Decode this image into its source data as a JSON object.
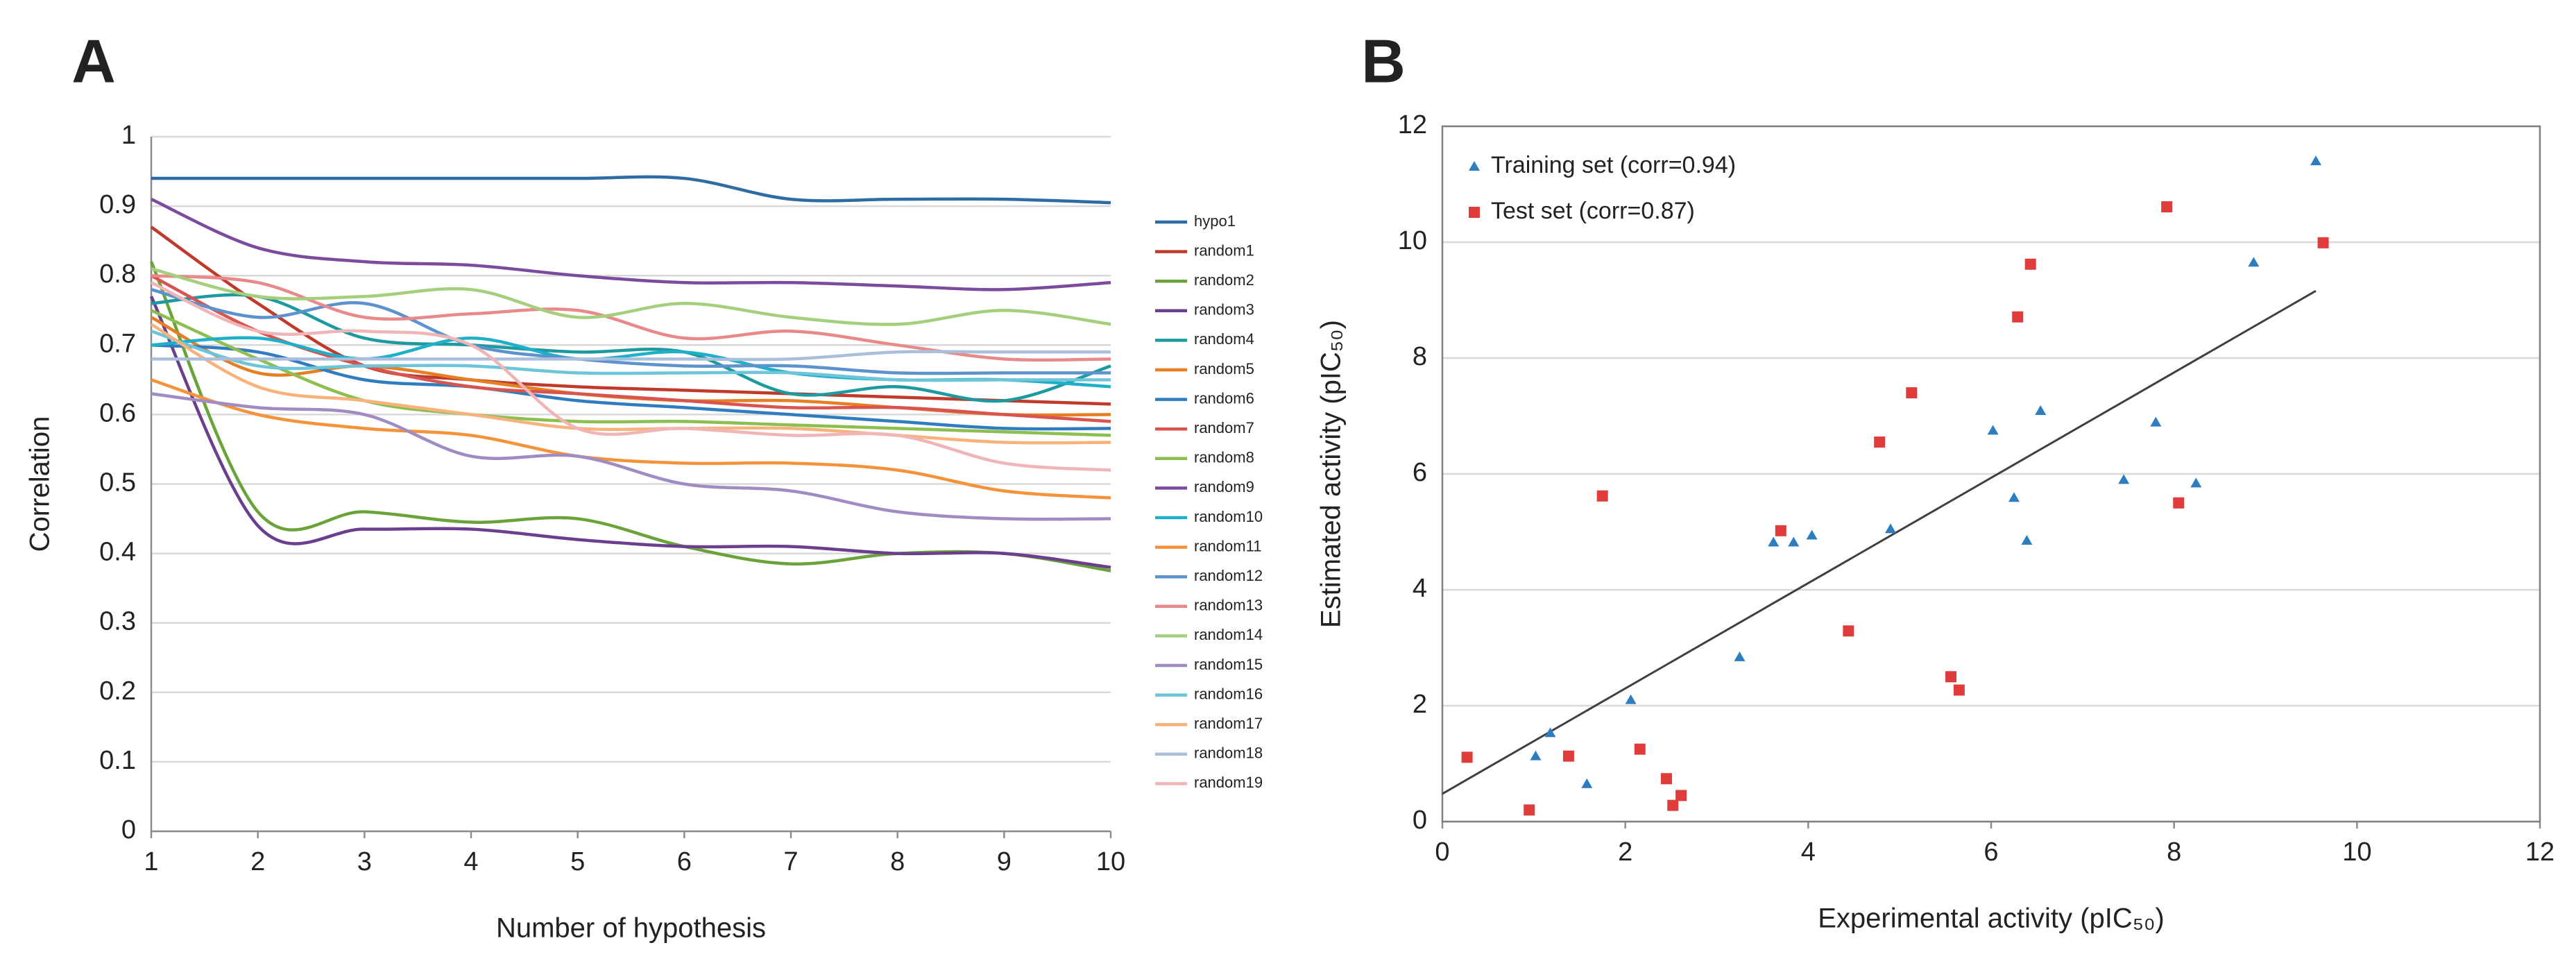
{
  "chart_data": [
    {
      "type": "line",
      "panel_label": "A",
      "xlabel": "Number of hypothesis",
      "ylabel": "Correlation",
      "x": [
        1,
        2,
        3,
        4,
        5,
        6,
        7,
        8,
        9,
        10
      ],
      "xlim": [
        1,
        10
      ],
      "xticks": [
        1,
        2,
        3,
        4,
        5,
        6,
        7,
        8,
        9,
        10
      ],
      "ylim": [
        0,
        1
      ],
      "yticks": [
        0,
        0.1,
        0.2,
        0.3,
        0.4,
        0.5,
        0.6,
        0.7,
        0.8,
        0.9,
        1
      ],
      "grid": true,
      "legend": "right",
      "series": [
        {
          "name": "hypo1",
          "color": "#2e6da4",
          "values": [
            0.94,
            0.94,
            0.94,
            0.94,
            0.94,
            0.94,
            0.91,
            0.91,
            0.91,
            0.905
          ]
        },
        {
          "name": "random1",
          "color": "#c0392b",
          "values": [
            0.87,
            0.76,
            0.67,
            0.65,
            0.64,
            0.635,
            0.63,
            0.625,
            0.62,
            0.615
          ]
        },
        {
          "name": "random2",
          "color": "#6aa33a",
          "values": [
            0.82,
            0.46,
            0.46,
            0.445,
            0.45,
            0.41,
            0.385,
            0.4,
            0.4,
            0.375
          ]
        },
        {
          "name": "random3",
          "color": "#6b3e8e",
          "values": [
            0.77,
            0.44,
            0.435,
            0.435,
            0.42,
            0.41,
            0.41,
            0.4,
            0.4,
            0.38
          ]
        },
        {
          "name": "random4",
          "color": "#1c9aa0",
          "values": [
            0.76,
            0.77,
            0.71,
            0.7,
            0.69,
            0.69,
            0.63,
            0.64,
            0.62,
            0.67
          ]
        },
        {
          "name": "random5",
          "color": "#e67e22",
          "values": [
            0.74,
            0.66,
            0.67,
            0.65,
            0.63,
            0.62,
            0.62,
            0.61,
            0.6,
            0.6
          ]
        },
        {
          "name": "random6",
          "color": "#2f7dbf",
          "values": [
            0.7,
            0.69,
            0.65,
            0.64,
            0.62,
            0.61,
            0.6,
            0.59,
            0.58,
            0.58
          ]
        },
        {
          "name": "random7",
          "color": "#d9534f",
          "values": [
            0.8,
            0.72,
            0.67,
            0.64,
            0.63,
            0.62,
            0.61,
            0.61,
            0.6,
            0.59
          ]
        },
        {
          "name": "random8",
          "color": "#8cbf4f",
          "values": [
            0.75,
            0.68,
            0.62,
            0.6,
            0.59,
            0.59,
            0.585,
            0.58,
            0.575,
            0.57
          ]
        },
        {
          "name": "random9",
          "color": "#7d4b9e",
          "values": [
            0.91,
            0.84,
            0.82,
            0.815,
            0.8,
            0.79,
            0.79,
            0.785,
            0.78,
            0.79
          ]
        },
        {
          "name": "random10",
          "color": "#1fb0c9",
          "values": [
            0.7,
            0.71,
            0.68,
            0.71,
            0.68,
            0.69,
            0.66,
            0.65,
            0.65,
            0.64
          ]
        },
        {
          "name": "random11",
          "color": "#f4933a",
          "values": [
            0.65,
            0.6,
            0.58,
            0.57,
            0.54,
            0.53,
            0.53,
            0.52,
            0.49,
            0.48
          ]
        },
        {
          "name": "random12",
          "color": "#5d93cc",
          "values": [
            0.78,
            0.74,
            0.76,
            0.7,
            0.68,
            0.67,
            0.67,
            0.66,
            0.66,
            0.66
          ]
        },
        {
          "name": "random13",
          "color": "#e8898a",
          "values": [
            0.8,
            0.79,
            0.74,
            0.745,
            0.75,
            0.71,
            0.72,
            0.7,
            0.68,
            0.68
          ]
        },
        {
          "name": "random14",
          "color": "#a5cf7c",
          "values": [
            0.81,
            0.77,
            0.77,
            0.78,
            0.74,
            0.76,
            0.74,
            0.73,
            0.75,
            0.73
          ]
        },
        {
          "name": "random15",
          "color": "#a08bc2",
          "values": [
            0.63,
            0.61,
            0.6,
            0.54,
            0.54,
            0.5,
            0.49,
            0.46,
            0.45,
            0.45
          ]
        },
        {
          "name": "random16",
          "color": "#6cc5d8",
          "values": [
            0.72,
            0.67,
            0.67,
            0.67,
            0.66,
            0.66,
            0.66,
            0.65,
            0.65,
            0.65
          ]
        },
        {
          "name": "random17",
          "color": "#f8b37c",
          "values": [
            0.73,
            0.64,
            0.62,
            0.6,
            0.58,
            0.58,
            0.58,
            0.57,
            0.56,
            0.56
          ]
        },
        {
          "name": "random18",
          "color": "#a9bfdc",
          "values": [
            0.68,
            0.68,
            0.68,
            0.68,
            0.68,
            0.68,
            0.68,
            0.69,
            0.69,
            0.69
          ]
        },
        {
          "name": "random19",
          "color": "#f0b5b6",
          "values": [
            0.79,
            0.72,
            0.72,
            0.7,
            0.58,
            0.58,
            0.57,
            0.57,
            0.53,
            0.52
          ]
        }
      ]
    },
    {
      "type": "scatter",
      "panel_label": "B",
      "xlabel": "Experimental activity (pIC₅₀)",
      "ylabel": "Estimated activity (pIC₅₀)",
      "xlim": [
        0,
        12
      ],
      "xticks": [
        0,
        2,
        4,
        6,
        8,
        10,
        12
      ],
      "ylim": [
        0,
        12
      ],
      "yticks": [
        0,
        2,
        4,
        6,
        8,
        10,
        12
      ],
      "grid": true,
      "legend": "upper left",
      "series": [
        {
          "name": "Training set (corr=0.94)",
          "color": "#2e7dc1",
          "marker": "triangle",
          "x": [
            1.02,
            1.18,
            1.58,
            2.06,
            3.25,
            3.62,
            3.84,
            4.04,
            4.9,
            6.02,
            6.25,
            6.39,
            6.54,
            7.45,
            7.8,
            8.24,
            8.87,
            9.55
          ],
          "values": [
            1.13,
            1.53,
            0.65,
            2.1,
            2.84,
            4.82,
            4.82,
            4.94,
            5.05,
            6.75,
            5.59,
            4.85,
            7.09,
            5.9,
            6.89,
            5.84,
            9.65,
            11.4
          ]
        },
        {
          "name": "Test set (corr=0.87)",
          "color": "#e03c3c",
          "marker": "square",
          "x": [
            0.27,
            0.95,
            1.38,
            1.75,
            2.16,
            2.45,
            2.52,
            2.61,
            3.7,
            4.44,
            4.78,
            5.13,
            5.56,
            5.65,
            6.29,
            6.43,
            7.92,
            8.05,
            9.63
          ],
          "values": [
            1.11,
            0.2,
            1.13,
            5.62,
            1.25,
            0.74,
            0.28,
            0.45,
            5.02,
            3.29,
            6.55,
            7.4,
            2.5,
            2.27,
            8.71,
            9.62,
            10.61,
            5.5,
            9.99
          ]
        }
      ],
      "trendline": {
        "color": "#404040",
        "x": [
          0,
          9.55
        ],
        "values": [
          0.48,
          9.16
        ]
      }
    }
  ]
}
